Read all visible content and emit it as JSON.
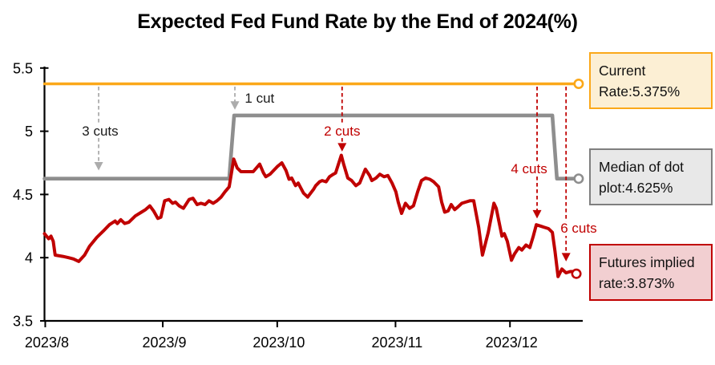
{
  "title": "Expected Fed Fund Rate by the End of 2024(%)",
  "chart_data": {
    "type": "line",
    "title": "Expected Fed Fund Rate by the End of 2024(%)",
    "x_unit": "days since 2023-08-01",
    "ylim": [
      3.5,
      5.5
    ],
    "grid": false,
    "x_ticks": [
      {
        "label": "2023/8",
        "day": 0.2
      },
      {
        "label": "2023/9",
        "day": 31
      },
      {
        "label": "2023/10",
        "day": 61
      },
      {
        "label": "2023/11",
        "day": 92
      },
      {
        "label": "2023/12",
        "day": 122
      }
    ],
    "y_ticks": [
      {
        "label": "5.5",
        "value": 5.5
      },
      {
        "label": "5",
        "value": 5.0
      },
      {
        "label": "4.5",
        "value": 4.5
      },
      {
        "label": "4",
        "value": 4.0
      },
      {
        "label": "3.5",
        "value": 3.5
      }
    ],
    "series": [
      {
        "name": "Current Rate",
        "value": 5.375,
        "color": "#FBA819",
        "width": 3.4,
        "points": [
          [
            0,
            5.375
          ],
          [
            139,
            5.375
          ]
        ],
        "marker": {
          "day": 140,
          "value": 5.375
        }
      },
      {
        "name": "Median of dot plot",
        "value": 4.625,
        "color": "#8E8E8E",
        "width": 4.6,
        "points": [
          [
            0,
            4.625
          ],
          [
            48.4,
            4.625
          ],
          [
            49.7,
            5.125
          ],
          [
            133.1,
            5.125
          ],
          [
            134.3,
            4.625
          ],
          [
            139,
            4.625
          ]
        ],
        "marker": {
          "day": 140,
          "value": 4.625
        }
      },
      {
        "name": "Futures implied rate",
        "value": 3.873,
        "color": "#C00000",
        "width": 4,
        "points": [
          [
            0,
            4.19
          ],
          [
            1.1,
            4.15
          ],
          [
            1.7,
            4.17
          ],
          [
            2.3,
            4.13
          ],
          [
            2.8,
            4.02
          ],
          [
            4.8,
            4.01
          ],
          [
            6.3,
            4.0
          ],
          [
            7.6,
            3.99
          ],
          [
            9,
            3.97
          ],
          [
            10.5,
            4.02
          ],
          [
            11.8,
            4.09
          ],
          [
            13.7,
            4.16
          ],
          [
            15.4,
            4.21
          ],
          [
            17,
            4.26
          ],
          [
            18.5,
            4.29
          ],
          [
            19.1,
            4.27
          ],
          [
            20,
            4.3
          ],
          [
            21,
            4.27
          ],
          [
            22.1,
            4.28
          ],
          [
            23.8,
            4.33
          ],
          [
            25.4,
            4.36
          ],
          [
            26.5,
            4.38
          ],
          [
            27.6,
            4.41
          ],
          [
            28.6,
            4.37
          ],
          [
            29.7,
            4.31
          ],
          [
            30.5,
            4.32
          ],
          [
            31.5,
            4.45
          ],
          [
            32.6,
            4.46
          ],
          [
            33.6,
            4.43
          ],
          [
            34.3,
            4.44
          ],
          [
            35.3,
            4.41
          ],
          [
            36.4,
            4.39
          ],
          [
            37.9,
            4.46
          ],
          [
            38.9,
            4.47
          ],
          [
            40,
            4.42
          ],
          [
            41,
            4.43
          ],
          [
            42.1,
            4.42
          ],
          [
            43.1,
            4.45
          ],
          [
            44.2,
            4.43
          ],
          [
            45.2,
            4.45
          ],
          [
            46.3,
            4.48
          ],
          [
            47.3,
            4.52
          ],
          [
            48.4,
            4.56
          ],
          [
            49.6,
            4.78
          ],
          [
            50.5,
            4.71
          ],
          [
            51.5,
            4.68
          ],
          [
            53.2,
            4.68
          ],
          [
            54.7,
            4.68
          ],
          [
            56.4,
            4.74
          ],
          [
            57.4,
            4.67
          ],
          [
            58,
            4.64
          ],
          [
            59.1,
            4.66
          ],
          [
            61,
            4.72
          ],
          [
            62.2,
            4.75
          ],
          [
            63.3,
            4.69
          ],
          [
            64.1,
            4.62
          ],
          [
            64.8,
            4.63
          ],
          [
            65.8,
            4.57
          ],
          [
            66.5,
            4.59
          ],
          [
            67.9,
            4.51
          ],
          [
            69,
            4.48
          ],
          [
            70.5,
            4.54
          ],
          [
            71.1,
            4.57
          ],
          [
            72.1,
            4.6
          ],
          [
            72.8,
            4.61
          ],
          [
            73.8,
            4.6
          ],
          [
            74.7,
            4.64
          ],
          [
            75.7,
            4.66
          ],
          [
            76.3,
            4.67
          ],
          [
            77.8,
            4.81
          ],
          [
            78.4,
            4.74
          ],
          [
            79.5,
            4.63
          ],
          [
            80.5,
            4.61
          ],
          [
            81.6,
            4.57
          ],
          [
            82.6,
            4.59
          ],
          [
            84.1,
            4.7
          ],
          [
            85.2,
            4.65
          ],
          [
            85.8,
            4.61
          ],
          [
            86.9,
            4.63
          ],
          [
            87.9,
            4.66
          ],
          [
            89,
            4.64
          ],
          [
            90,
            4.65
          ],
          [
            91.1,
            4.59
          ],
          [
            92.1,
            4.52
          ],
          [
            92.7,
            4.44
          ],
          [
            93.6,
            4.35
          ],
          [
            94.6,
            4.43
          ],
          [
            95.7,
            4.39
          ],
          [
            96.7,
            4.41
          ],
          [
            97.8,
            4.52
          ],
          [
            98.8,
            4.61
          ],
          [
            99.9,
            4.63
          ],
          [
            101,
            4.62
          ],
          [
            102,
            4.6
          ],
          [
            103.3,
            4.56
          ],
          [
            104.1,
            4.44
          ],
          [
            104.9,
            4.36
          ],
          [
            105.8,
            4.37
          ],
          [
            106.6,
            4.42
          ],
          [
            107.5,
            4.38
          ],
          [
            108.3,
            4.4
          ],
          [
            109.4,
            4.43
          ],
          [
            110.4,
            4.44
          ],
          [
            111.5,
            4.45
          ],
          [
            112.5,
            4.45
          ],
          [
            113.8,
            4.24
          ],
          [
            114.8,
            4.02
          ],
          [
            116.3,
            4.2
          ],
          [
            117.8,
            4.43
          ],
          [
            118.4,
            4.39
          ],
          [
            119.9,
            4.17
          ],
          [
            120.5,
            4.19
          ],
          [
            121.3,
            4.13
          ],
          [
            122.4,
            3.98
          ],
          [
            123.2,
            4.03
          ],
          [
            124.3,
            4.08
          ],
          [
            125.1,
            4.06
          ],
          [
            126.2,
            4.1
          ],
          [
            127.2,
            4.08
          ],
          [
            128.1,
            4.17
          ],
          [
            128.9,
            4.26
          ],
          [
            130,
            4.25
          ],
          [
            131,
            4.24
          ],
          [
            132.1,
            4.23
          ],
          [
            133.1,
            4.2
          ],
          [
            133.8,
            4.05
          ],
          [
            134.6,
            3.85
          ],
          [
            135.6,
            3.91
          ],
          [
            136.7,
            3.88
          ],
          [
            137.8,
            3.89
          ],
          [
            138.8,
            3.89
          ],
          [
            139.4,
            3.873
          ]
        ],
        "marker": {
          "day": 139.4,
          "value": 3.873
        }
      }
    ],
    "annotations": [
      {
        "label": "3 cuts",
        "day": 14.2,
        "tip_value": 4.69,
        "label_day": 14.6,
        "label_value": 5.0,
        "anchor": "middle",
        "bg": true,
        "line_color": "#ACACAC",
        "text_color": "#1A1A1A"
      },
      {
        "label": "1 cut",
        "day": 49.9,
        "tip_value": 5.17,
        "label_day": 52.5,
        "label_value": 5.26,
        "anchor": "start",
        "bg": false,
        "line_color": "#ACACAC",
        "text_color": "#1A1A1A"
      },
      {
        "label": "2 cuts",
        "day": 78.0,
        "tip_value": 4.84,
        "label_day": 78.0,
        "label_value": 5.0,
        "anchor": "middle",
        "bg": true,
        "line_color": "#C00000",
        "text_color": "#C00000"
      },
      {
        "label": "4 cuts",
        "day": 129.1,
        "tip_value": 4.31,
        "label_day": 127.0,
        "label_value": 4.7,
        "anchor": "middle",
        "bg": true,
        "line_color": "#C00000",
        "text_color": "#C00000"
      },
      {
        "label": "6 cuts",
        "day": 136.7,
        "tip_value": 3.97,
        "label_day": 140.0,
        "label_value": 4.23,
        "anchor": "middle",
        "bg": true,
        "line_color": "#C00000",
        "text_color": "#C00000"
      }
    ]
  },
  "legend": {
    "boxes": [
      {
        "lines": [
          "Current",
          "Rate:5.375%"
        ],
        "fill": "#FCEFD4",
        "border": "#FBA819"
      },
      {
        "lines": [
          "Median of dot",
          "plot:4.625%"
        ],
        "fill": "#E8E8E8",
        "border": "#7F7F7F"
      },
      {
        "lines": [
          "Futures implied",
          "rate:3.873%"
        ],
        "fill": "#F2CFD1",
        "border": "#C00000"
      }
    ]
  }
}
